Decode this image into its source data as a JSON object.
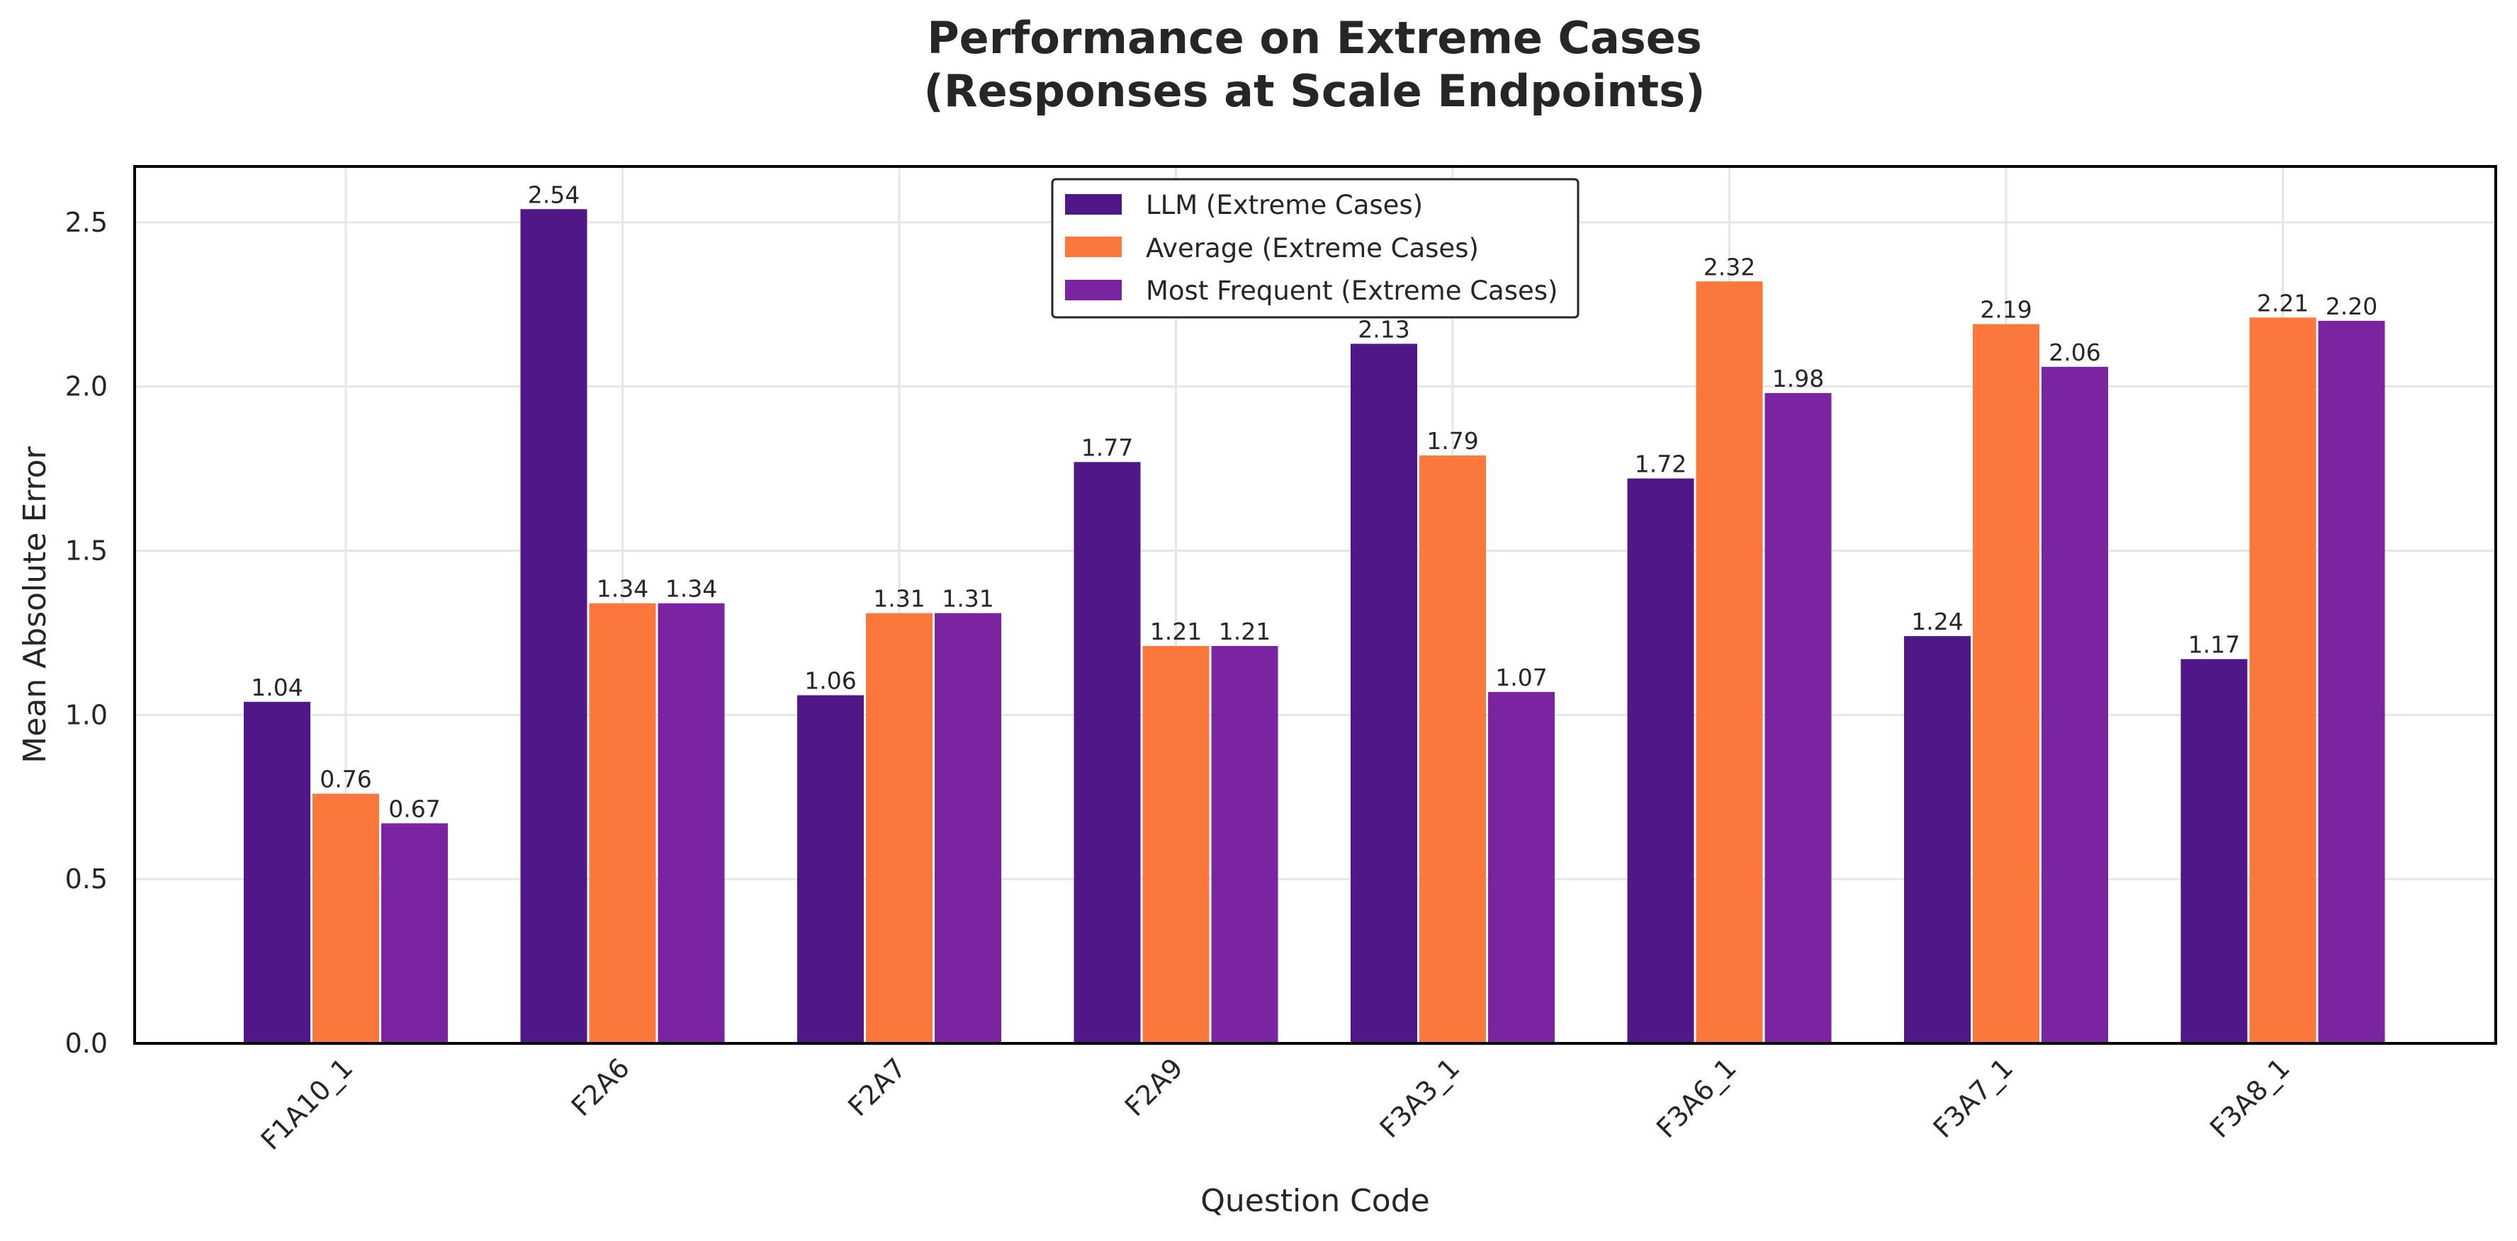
{
  "chart_data": {
    "type": "bar",
    "title": [
      "Performance on Extreme Cases",
      "(Responses at Scale Endpoints)"
    ],
    "xlabel": "Question Code",
    "ylabel": "Mean Absolute Error",
    "ylim": [
      0,
      2.67
    ],
    "yticks": [
      "0.0",
      "0.5",
      "1.0",
      "1.5",
      "2.0",
      "2.5"
    ],
    "categories": [
      "F1A10_1",
      "F2A6",
      "F2A7",
      "F2A9",
      "F3A3_1",
      "F3A6_1",
      "F3A7_1",
      "F3A8_1"
    ],
    "grid": true,
    "legend_position": "top-center",
    "series": [
      {
        "name": "LLM (Extreme Cases)",
        "color": "#4f1787",
        "values": [
          1.04,
          2.54,
          1.06,
          1.77,
          2.13,
          1.72,
          1.24,
          1.17
        ],
        "labels": [
          "1.04",
          "2.54",
          "1.06",
          "1.77",
          "2.13",
          "1.72",
          "1.24",
          "1.17"
        ]
      },
      {
        "name": "Average (Extreme Cases)",
        "color": "#fb773c",
        "values": [
          0.76,
          1.34,
          1.31,
          1.21,
          1.79,
          2.32,
          2.19,
          2.21
        ],
        "labels": [
          "0.76",
          "1.34",
          "1.31",
          "1.21",
          "1.79",
          "2.32",
          "2.19",
          "2.21"
        ]
      },
      {
        "name": "Most Frequent (Extreme Cases)",
        "color": "#7a24a1",
        "values": [
          0.67,
          1.34,
          1.31,
          1.21,
          1.07,
          1.98,
          2.06,
          2.2
        ],
        "labels": [
          "0.67",
          "1.34",
          "1.31",
          "1.21",
          "1.07",
          "1.98",
          "2.06",
          "2.20"
        ]
      }
    ]
  }
}
